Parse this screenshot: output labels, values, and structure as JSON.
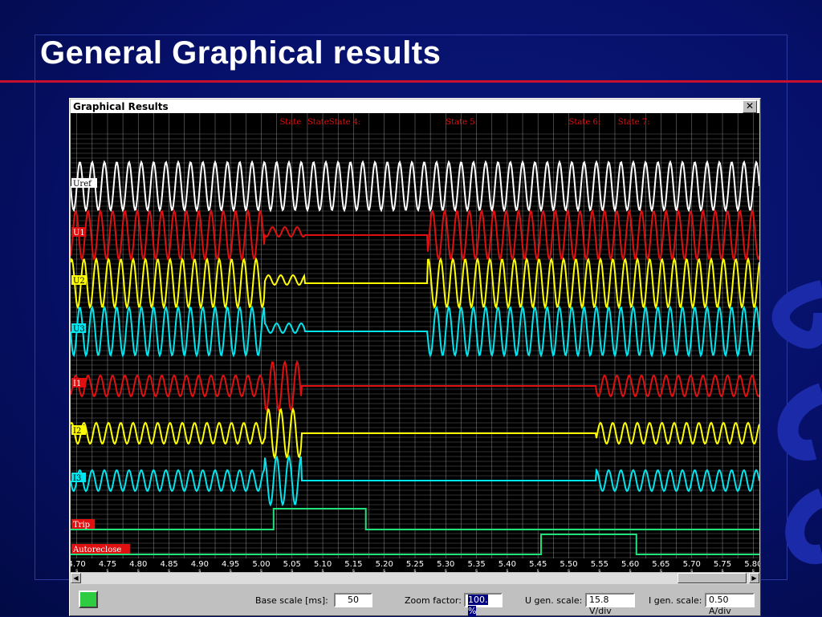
{
  "slide": {
    "title": "General Graphical results",
    "accent_color": "#c8102e",
    "background_color": "#06106a"
  },
  "window": {
    "title": "Graphical Results",
    "close_label": "✕"
  },
  "states": [
    {
      "label": "State",
      "t": 5.03
    },
    {
      "label": "State",
      "t": 5.075
    },
    {
      "label": "State 4:",
      "t": 5.11
    },
    {
      "label": "State 5:",
      "t": 5.3
    },
    {
      "label": "State 6:",
      "t": 5.5
    },
    {
      "label": "State 7:",
      "t": 5.58
    }
  ],
  "channels": [
    {
      "name": "Uref",
      "color": "#ffffff",
      "label_bg": "#ffffff",
      "label_fg": "#000000"
    },
    {
      "name": "U1",
      "color": "#e01010",
      "label_bg": "#e01010",
      "label_fg": "#ffffff"
    },
    {
      "name": "U2",
      "color": "#ffff00",
      "label_bg": "#ffff00",
      "label_fg": "#000000"
    },
    {
      "name": "U3",
      "color": "#00e5ee",
      "label_bg": "#00e5ee",
      "label_fg": "#000000"
    },
    {
      "name": "I1",
      "color": "#e01010",
      "label_bg": "#e01010",
      "label_fg": "#ffffff"
    },
    {
      "name": "I2",
      "color": "#ffff00",
      "label_bg": "#ffff00",
      "label_fg": "#000000"
    },
    {
      "name": "I3",
      "color": "#00e5ee",
      "label_bg": "#00e5ee",
      "label_fg": "#000000"
    }
  ],
  "binary_channels": [
    {
      "name": "Trip",
      "color": "#22e07a",
      "label_bg": "#e01010",
      "label_fg": "#ffffff",
      "high_from": 5.02,
      "high_to": 5.17
    },
    {
      "name": "Autoreclose",
      "color": "#22e07a",
      "label_bg": "#e01010",
      "label_fg": "#ffffff",
      "high_from": 5.455,
      "high_to": 5.61
    }
  ],
  "time_axis": {
    "unit": "s",
    "ticks": [
      "4.70",
      "4.75",
      "4.80",
      "4.85",
      "4.90",
      "4.95",
      "5.00",
      "5.05",
      "5.10",
      "5.15",
      "5.20",
      "5.25",
      "5.30",
      "5.35",
      "5.40",
      "5.45",
      "5.50",
      "5.55",
      "5.60",
      "5.65",
      "5.70",
      "5.75",
      "5.80"
    ],
    "range": [
      4.69,
      5.81
    ]
  },
  "status_bar": {
    "base_scale_label": "Base scale [ms]:",
    "base_scale_value": "50",
    "zoom_label": "Zoom factor:",
    "zoom_value": "100. %",
    "u_scale_label": "U gen. scale:",
    "u_scale_value": "15.8 V/div",
    "i_scale_label": "I gen. scale:",
    "i_scale_value": "0.50 A/div"
  }
}
